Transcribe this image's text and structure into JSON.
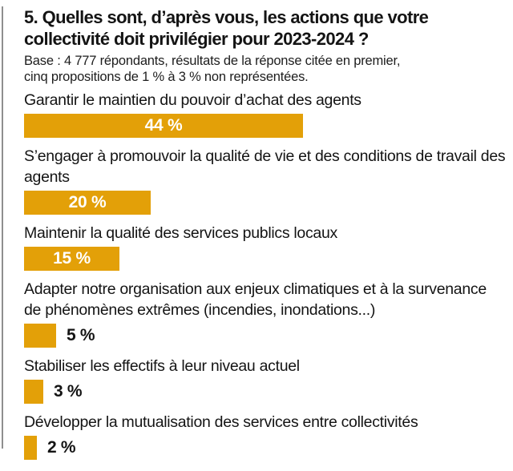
{
  "accent_color": "#e3a008",
  "text_color": "#141414",
  "rule_color": "#8f8f8f",
  "header": {
    "title_lines": [
      "5. Quelles sont, d’après vous, les actions que votre",
      "collectivité doit privilégier pour 2023-2024 ?"
    ],
    "subtitle_lines": [
      "Base : 4 777 répondants, résultats de la réponse citée en premier,",
      "cinq propositions de 1 % à 3 % non représentées."
    ]
  },
  "chart_data": {
    "type": "bar",
    "orientation": "horizontal",
    "title": "5. Quelles sont, d’après vous, les actions que votre collectivité doit privilégier pour 2023-2024 ?",
    "base_note": "Base : 4 777 répondants, résultats de la réponse citée en premier, cinq propositions de 1 % à 3 % non représentées.",
    "unit": "%",
    "categories": [
      "Garantir le maintien du pouvoir d’achat des agents",
      "S’engager à promouvoir la qualité de vie et des conditions de travail des agents",
      "Maintenir la qualité des services publics locaux",
      "Adapter notre organisation aux enjeux climatiques et à la survenance de phénomènes extrêmes (incendies, inondations...)",
      "Stabiliser les effectifs à leur niveau actuel",
      "Développer la mutualisation des services entre collectivités"
    ],
    "values": [
      44,
      20,
      15,
      5,
      3,
      2
    ],
    "value_labels": [
      "44 %",
      "20 %",
      "15 %",
      "5 %",
      "3 %",
      "2 %"
    ],
    "value_label_placement": [
      "inside",
      "inside",
      "inside",
      "outside",
      "outside",
      "outside"
    ],
    "bar_color": "#e3a008",
    "xlim": [
      0,
      50
    ],
    "grid": false,
    "legend": false
  }
}
